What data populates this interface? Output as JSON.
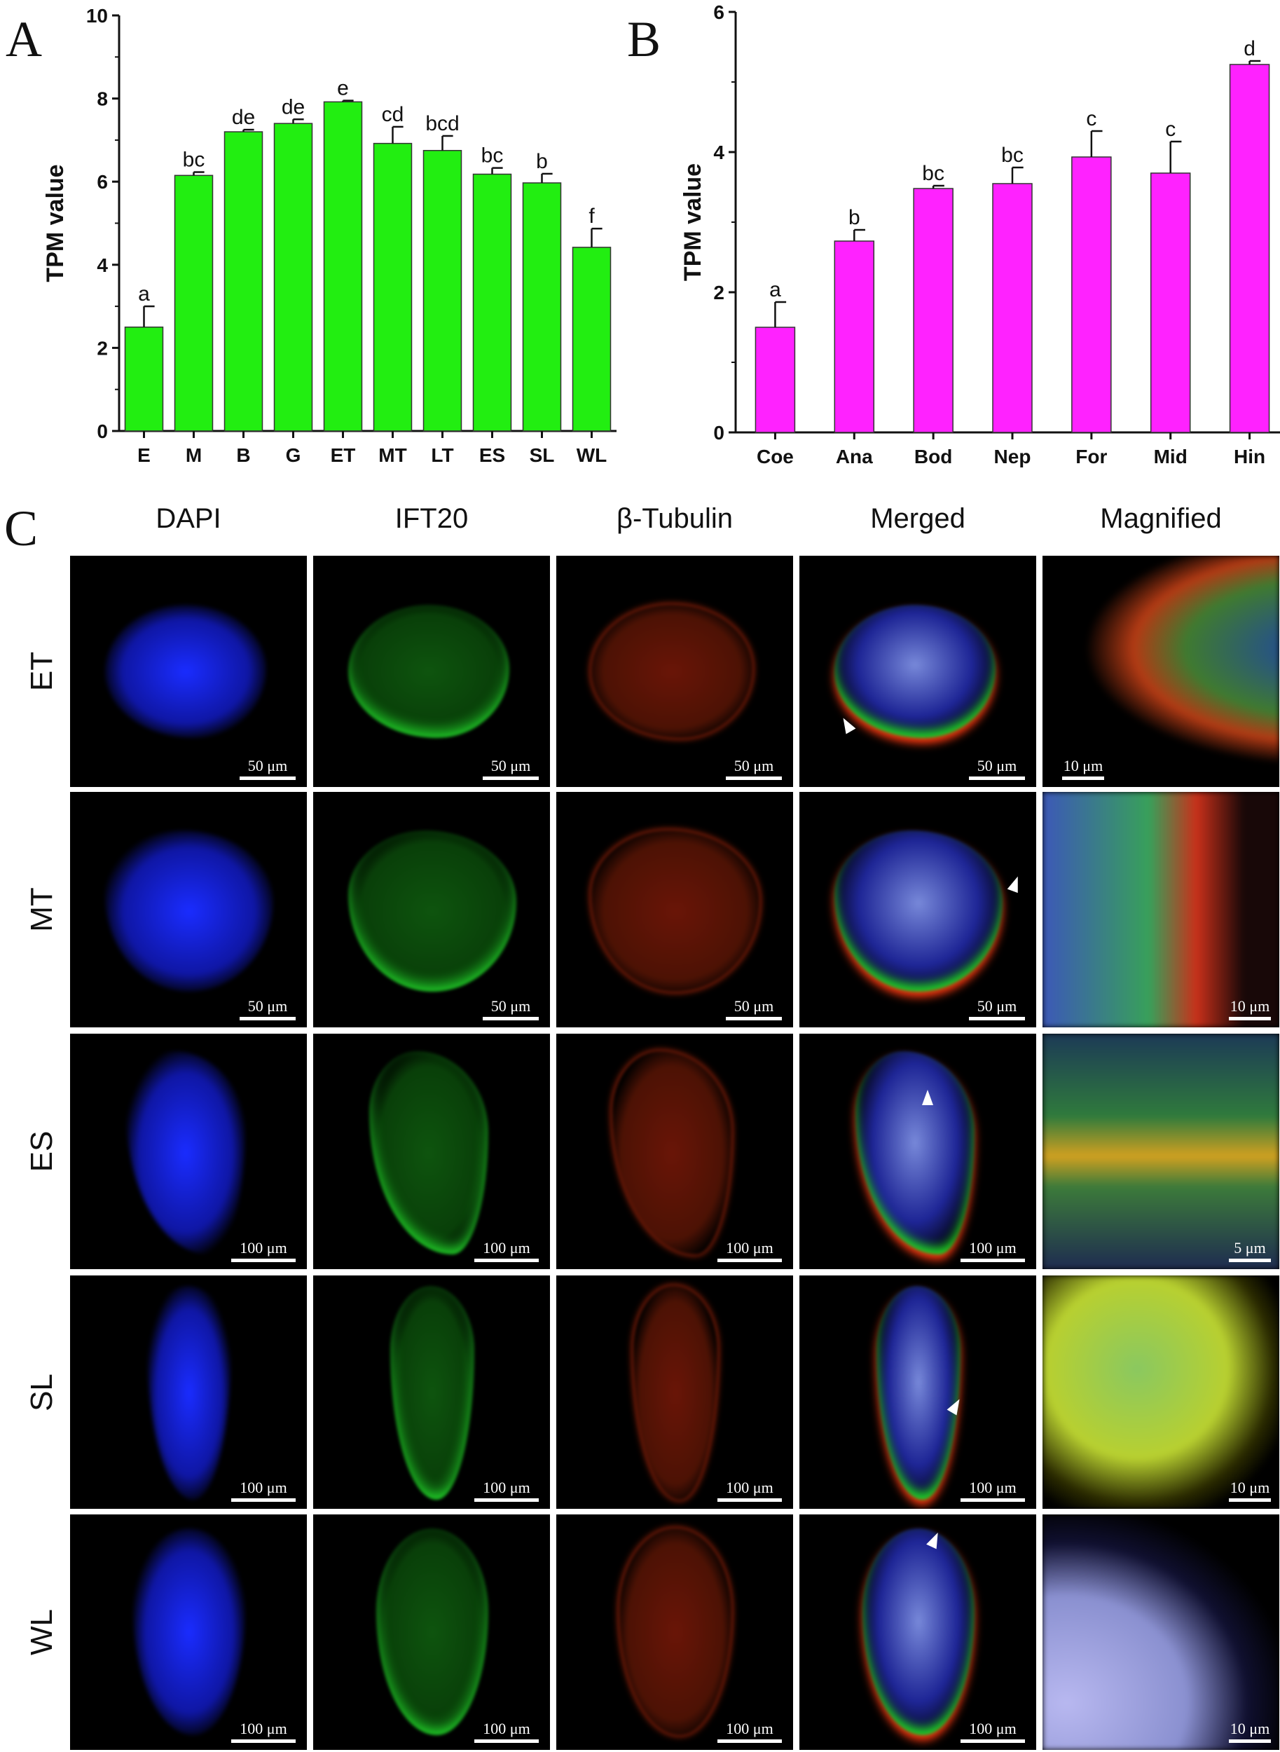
{
  "panels": {
    "a": "A",
    "b": "B",
    "c": "C"
  },
  "chart_data": [
    {
      "type": "bar",
      "categories": [
        "E",
        "M",
        "B",
        "G",
        "ET",
        "MT",
        "LT",
        "ES",
        "SL",
        "WL"
      ],
      "values": [
        2.5,
        6.15,
        7.2,
        7.4,
        7.92,
        6.92,
        6.75,
        6.18,
        5.97,
        4.42
      ],
      "errors": [
        0.5,
        0.08,
        0.05,
        0.1,
        0.03,
        0.4,
        0.35,
        0.15,
        0.22,
        0.45
      ],
      "letters": [
        "a",
        "bc",
        "de",
        "de",
        "e",
        "cd",
        "bcd",
        "bc",
        "b",
        "f"
      ],
      "ylabel": "TPM value",
      "ylim": [
        0,
        10
      ],
      "yticks": [
        "0",
        "2",
        "4",
        "6",
        "8",
        "10"
      ],
      "color": "#22ee11"
    },
    {
      "type": "bar",
      "categories": [
        "Coe",
        "Ana",
        "Bod",
        "Nep",
        "For",
        "Mid",
        "Hin"
      ],
      "values": [
        1.5,
        2.73,
        3.48,
        3.55,
        3.93,
        3.7,
        5.25
      ],
      "errors": [
        0.36,
        0.16,
        0.04,
        0.23,
        0.37,
        0.45,
        0.05
      ],
      "letters": [
        "a",
        "b",
        "bc",
        "bc",
        "c",
        "c",
        "d"
      ],
      "ylabel": "TPM value",
      "ylim": [
        0,
        6
      ],
      "yticks": [
        "0",
        "2",
        "4",
        "6"
      ],
      "color": "#ff22ff"
    }
  ],
  "microscopy": {
    "columns": [
      "DAPI",
      "IFT20",
      "β-Tubulin",
      "Merged",
      "Magnified"
    ],
    "rows": [
      {
        "label": "ET",
        "scales": [
          "50 μm",
          "50 μm",
          "50 μm",
          "50 μm",
          "10 μm"
        ]
      },
      {
        "label": "MT",
        "scales": [
          "50 μm",
          "50 μm",
          "50 μm",
          "50 μm",
          "10 μm"
        ]
      },
      {
        "label": "ES",
        "scales": [
          "100 μm",
          "100 μm",
          "100 μm",
          "100 μm",
          "5 μm"
        ]
      },
      {
        "label": "SL",
        "scales": [
          "100 μm",
          "100 μm",
          "100 μm",
          "100 μm",
          "10 μm"
        ]
      },
      {
        "label": "WL",
        "scales": [
          "100 μm",
          "100 μm",
          "100 μm",
          "100 μm",
          "10 μm"
        ]
      }
    ],
    "channel_colors": {
      "dapi": "#1a2cff",
      "ift20": "#22d42a",
      "tubulin": "#ff3a10"
    }
  }
}
